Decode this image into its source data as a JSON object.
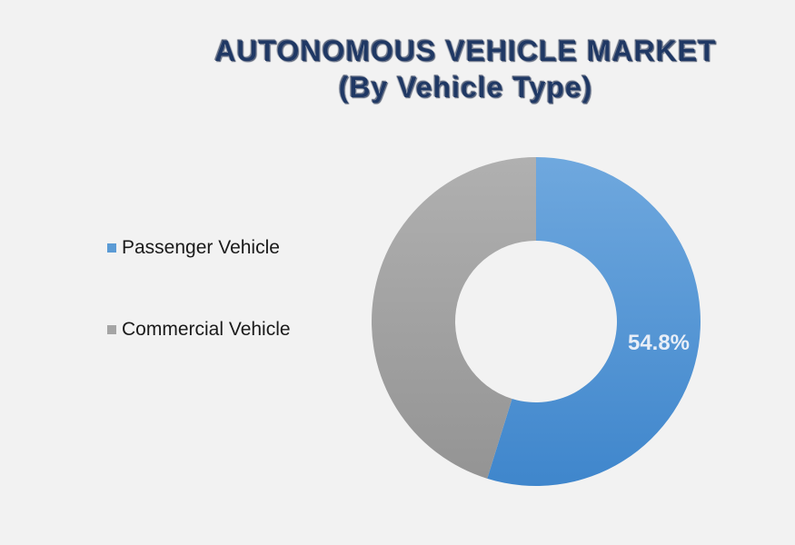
{
  "title": {
    "line1": "AUTONOMOUS VEHICLE MARKET",
    "line2": "(By Vehicle Type)"
  },
  "chart_data": {
    "type": "pie",
    "variant": "donut",
    "title": "AUTONOMOUS VEHICLE MARKET (By Vehicle Type)",
    "categories": [
      "Passenger Vehicle",
      "Commercial Vehicle"
    ],
    "values": [
      54.8,
      45.2
    ],
    "data_labels": [
      "54.8%",
      ""
    ],
    "colors": [
      "#5b9bd5",
      "#a5a5a5"
    ],
    "legend_position": "left"
  }
}
